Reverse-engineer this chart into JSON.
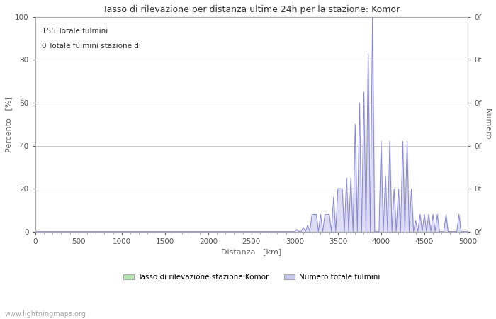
{
  "title": "Tasso di rilevazione per distanza ultime 24h per la stazione: Komor",
  "xlabel": "Distanza   [km]",
  "ylabel_left": "Percento   [%]",
  "ylabel_right": "Numero",
  "annotation_line1": "155 Totale fulmini",
  "annotation_line2": "0 Totale fulmini stazione di",
  "legend_label1": "Tasso di rilevazione stazione Komor",
  "legend_label2": "Numero totale fulmini",
  "legend_color1": "#b3e6b3",
  "legend_color2": "#c8c8f0",
  "watermark": "www.lightningmaps.org",
  "xlim": [
    0,
    5000
  ],
  "ylim": [
    0,
    100
  ],
  "xticks": [
    0,
    500,
    1000,
    1500,
    2000,
    2500,
    3000,
    3500,
    4000,
    4500,
    5000
  ],
  "yticks_left": [
    0,
    20,
    40,
    60,
    80,
    100
  ],
  "background_color": "#ffffff",
  "grid_color": "#cccccc",
  "line_color": "#8888cc",
  "fill_color": "#dcdcf5",
  "distances": [
    0,
    25,
    50,
    75,
    100,
    125,
    150,
    175,
    200,
    225,
    250,
    275,
    300,
    325,
    350,
    375,
    400,
    425,
    450,
    475,
    500,
    525,
    550,
    575,
    600,
    625,
    650,
    675,
    700,
    725,
    750,
    775,
    800,
    825,
    850,
    875,
    900,
    925,
    950,
    975,
    1000,
    1025,
    1050,
    1075,
    1100,
    1125,
    1150,
    1175,
    1200,
    1225,
    1250,
    1275,
    1300,
    1325,
    1350,
    1375,
    1400,
    1425,
    1450,
    1475,
    1500,
    1525,
    1550,
    1575,
    1600,
    1625,
    1650,
    1675,
    1700,
    1725,
    1750,
    1775,
    1800,
    1825,
    1850,
    1875,
    1900,
    1925,
    1950,
    1975,
    2000,
    2025,
    2050,
    2075,
    2100,
    2125,
    2150,
    2175,
    2200,
    2225,
    2250,
    2275,
    2300,
    2325,
    2350,
    2375,
    2400,
    2425,
    2450,
    2475,
    2500,
    2525,
    2550,
    2575,
    2600,
    2625,
    2650,
    2675,
    2700,
    2725,
    2750,
    2775,
    2800,
    2825,
    2850,
    2875,
    2900,
    2925,
    2950,
    2975,
    3000,
    3025,
    3050,
    3075,
    3100,
    3125,
    3150,
    3175,
    3200,
    3225,
    3250,
    3275,
    3300,
    3325,
    3350,
    3375,
    3400,
    3425,
    3450,
    3475,
    3500,
    3525,
    3550,
    3575,
    3600,
    3625,
    3650,
    3675,
    3700,
    3725,
    3750,
    3775,
    3800,
    3825,
    3850,
    3875,
    3900,
    3925,
    3950,
    3975,
    4000,
    4025,
    4050,
    4075,
    4100,
    4125,
    4150,
    4175,
    4200,
    4225,
    4250,
    4275,
    4300,
    4325,
    4350,
    4375,
    4400,
    4425,
    4450,
    4475,
    4500,
    4525,
    4550,
    4575,
    4600,
    4625,
    4650,
    4675,
    4700,
    4725,
    4750,
    4775,
    4800,
    4825,
    4850,
    4875,
    4900,
    4925,
    4950,
    4975,
    5000
  ],
  "values": [
    0,
    0,
    0,
    0,
    0,
    0,
    0,
    0,
    0,
    0,
    0,
    0,
    0,
    0,
    0,
    0,
    0,
    0,
    0,
    0,
    0,
    0,
    0,
    0,
    0,
    0,
    0,
    0,
    0,
    0,
    0,
    0,
    0,
    0,
    0,
    0,
    0,
    0,
    0,
    0,
    0,
    0,
    0,
    0,
    0,
    0,
    0,
    0,
    0,
    0,
    0,
    0,
    0,
    0,
    0,
    0,
    0,
    0,
    0,
    0,
    0,
    0,
    0,
    0,
    0,
    0,
    0,
    0,
    0,
    0,
    0,
    0,
    0,
    0,
    0,
    0,
    0,
    0,
    0,
    0,
    0,
    0,
    0,
    0,
    0,
    0,
    0,
    0,
    0,
    0,
    0,
    0,
    0,
    0,
    0,
    0,
    0,
    0,
    0,
    0,
    0,
    0,
    0,
    0,
    0,
    0,
    0,
    0,
    0,
    0,
    0,
    0,
    0,
    0,
    0,
    0,
    0,
    0,
    0,
    0,
    0,
    1,
    0,
    0,
    2,
    0,
    3,
    0,
    8,
    8,
    8,
    0,
    8,
    0,
    8,
    8,
    8,
    0,
    16,
    0,
    20,
    20,
    20,
    0,
    25,
    0,
    25,
    0,
    50,
    0,
    60,
    0,
    65,
    0,
    83,
    0,
    100,
    0,
    0,
    0,
    42,
    0,
    26,
    0,
    42,
    0,
    20,
    0,
    20,
    0,
    42,
    0,
    42,
    0,
    20,
    0,
    5,
    0,
    8,
    0,
    8,
    0,
    8,
    0,
    8,
    0,
    8,
    0,
    0,
    0,
    8,
    0,
    0,
    0,
    0,
    0,
    8,
    0,
    0,
    0,
    0
  ]
}
